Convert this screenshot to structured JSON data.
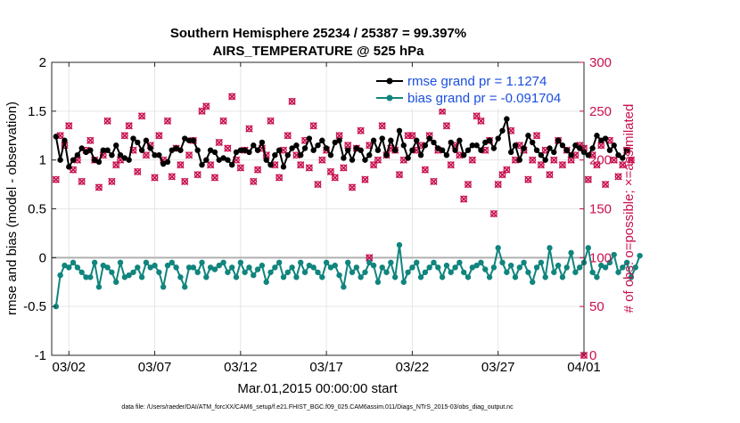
{
  "chart_data": {
    "type": "line",
    "title": [
      "Southern Hemisphere 25234 / 25387 = 99.397%",
      "AIRS_TEMPERATURE @ 525 hPa"
    ],
    "xlabel": "Mar.01,2015 00:00:00 start",
    "ylabel": "rmse and bias (model - observation)",
    "ylabel_right": "# of obs: o=possible; ×=assimilated",
    "xlim": [
      0,
      31
    ],
    "ylim": [
      -1,
      2
    ],
    "ylim_right": [
      0,
      300
    ],
    "x_ticks": [
      1,
      6,
      11,
      16,
      21,
      26,
      31
    ],
    "x_tick_labels": [
      "03/02",
      "03/07",
      "03/12",
      "03/17",
      "03/22",
      "03/27",
      "04/01"
    ],
    "y_ticks": [
      -1,
      -0.5,
      0,
      0.5,
      1,
      1.5,
      2
    ],
    "y_tick_labels": [
      "-1",
      "-0.5",
      "0",
      "0.5",
      "1",
      "1.5",
      "2"
    ],
    "y_ticks_right": [
      0,
      50,
      100,
      150,
      200,
      250,
      300
    ],
    "y_tick_labels_right": [
      "0",
      "50",
      "100",
      "150",
      "200",
      "250",
      "300"
    ],
    "grid": true,
    "legend_position": "top-right",
    "footnote": "data file: /Users/raeder/DAI/ATM_forcXX/CAM6_setup/f.e21.FHIST_BGC.f09_025.CAM6assim.011/Diags_NTrS_2015-03/obs_diag_output.nc",
    "colors": {
      "rmse": "#000000",
      "bias": "#10857e",
      "obs": "#c8104e",
      "legend_text": "#1a4fe0",
      "zero_line": "#b0b0b0"
    },
    "series": [
      {
        "name": "rmse grand pr = 1.1274",
        "axis": "left",
        "x_start": 0.25,
        "x_step": 0.25,
        "values": [
          1.24,
          1.0,
          1.2,
          0.93,
          1.0,
          1.05,
          1.12,
          1.08,
          1.1,
          1.0,
          0.98,
          1.1,
          1.1,
          1.05,
          1.15,
          1.05,
          1.02,
          1.0,
          1.22,
          1.18,
          1.1,
          1.2,
          1.12,
          1.05,
          1.05,
          0.96,
          0.98,
          1.1,
          1.12,
          1.1,
          1.22,
          1.2,
          1.2,
          1.1,
          0.95,
          1.0,
          1.1,
          1.08,
          1.0,
          1.02,
          1.0,
          0.95,
          1.08,
          1.1,
          1.1,
          1.08,
          1.15,
          1.1,
          1.18,
          1.0,
          0.95,
          1.05,
          1.1,
          0.93,
          1.05,
          1.12,
          1.15,
          1.05,
          1.12,
          1.22,
          1.1,
          1.15,
          1.2,
          1.12,
          1.05,
          1.18,
          1.2,
          1.02,
          1.1,
          1.0,
          1.12,
          1.1,
          1.0,
          1.05,
          1.2,
          1.1,
          1.22,
          1.05,
          1.2,
          1.1,
          1.3,
          1.15,
          1.02,
          1.1,
          1.2,
          1.05,
          1.15,
          1.22,
          1.18,
          1.12,
          1.1,
          1.05,
          1.18,
          1.1,
          1.2,
          1.05,
          1.1,
          1.15,
          1.15,
          1.1,
          1.18,
          1.2,
          1.12,
          1.22,
          1.3,
          1.42,
          1.08,
          1.15,
          1.0,
          1.12,
          1.25,
          1.18,
          1.1,
          1.05,
          1.0,
          1.12,
          1.08,
          1.2,
          1.15,
          1.1,
          1.05,
          1.15,
          1.12,
          1.08,
          1.05,
          1.12,
          1.25,
          1.2,
          1.22,
          1.1,
          1.15,
          1.05,
          1.02,
          1.1
        ]
      },
      {
        "name": "bias grand pr = -0.091704",
        "axis": "left",
        "x_start": 0.25,
        "x_step": 0.25,
        "values": [
          -0.5,
          -0.18,
          -0.08,
          -0.1,
          -0.05,
          -0.1,
          -0.15,
          -0.2,
          -0.2,
          -0.05,
          -0.3,
          -0.08,
          -0.1,
          -0.15,
          -0.25,
          -0.05,
          -0.2,
          -0.18,
          -0.15,
          -0.1,
          -0.2,
          -0.05,
          -0.1,
          -0.08,
          -0.15,
          -0.3,
          -0.08,
          -0.05,
          -0.1,
          -0.2,
          -0.3,
          -0.1,
          -0.1,
          -0.15,
          -0.05,
          -0.2,
          -0.1,
          -0.12,
          -0.08,
          -0.05,
          -0.15,
          -0.1,
          -0.2,
          -0.05,
          -0.15,
          -0.1,
          -0.18,
          -0.12,
          -0.08,
          -0.25,
          -0.15,
          -0.1,
          -0.05,
          -0.2,
          -0.15,
          -0.1,
          -0.2,
          -0.05,
          -0.15,
          -0.08,
          -0.1,
          -0.15,
          -0.2,
          -0.05,
          -0.1,
          -0.08,
          -0.18,
          -0.3,
          -0.05,
          -0.15,
          -0.1,
          -0.2,
          -0.15,
          -0.05,
          -0.08,
          -0.25,
          -0.1,
          -0.15,
          -0.05,
          -0.2,
          0.13,
          -0.25,
          -0.15,
          -0.1,
          -0.05,
          -0.2,
          -0.15,
          -0.1,
          -0.05,
          -0.1,
          -0.2,
          -0.08,
          -0.15,
          -0.1,
          -0.05,
          -0.15,
          -0.2,
          -0.1,
          -0.08,
          -0.05,
          -0.12,
          -0.2,
          -0.1,
          0.1,
          -0.05,
          -0.15,
          -0.08,
          -0.2,
          -0.1,
          -0.05,
          -0.15,
          -0.25,
          -0.1,
          -0.05,
          -0.2,
          0.1,
          -0.15,
          -0.08,
          -0.2,
          -0.1,
          0.05,
          -0.15,
          -0.1,
          -0.05,
          0.1,
          -0.15,
          -0.2,
          -0.08,
          -0.1,
          -0.05,
          0.03,
          -0.15,
          -0.1,
          -0.05,
          -0.2,
          -0.1,
          0.02
        ]
      },
      {
        "name": "# of obs (possible / assimilated)",
        "axis": "right",
        "type": "scatter",
        "x_start": 0.25,
        "x_step": 0.25,
        "values": [
          180,
          225,
          215,
          235,
          190,
          200,
          178,
          210,
          220,
          200,
          172,
          205,
          240,
          178,
          195,
          200,
          225,
          235,
          210,
          188,
          245,
          205,
          215,
          182,
          225,
          200,
          240,
          183,
          212,
          195,
          178,
          205,
          220,
          185,
          250,
          255,
          195,
          182,
          218,
          240,
          212,
          265,
          200,
          192,
          210,
          232,
          178,
          190,
          212,
          205,
          240,
          195,
          182,
          210,
          225,
          260,
          205,
          195,
          220,
          192,
          235,
          175,
          200,
          210,
          188,
          182,
          225,
          192,
          215,
          172,
          212,
          230,
          180,
          215,
          195,
          200,
          235,
          205,
          212,
          210,
          185,
          200,
          225,
          225,
          210,
          215,
          190,
          225,
          178,
          210,
          250,
          235,
          195,
          215,
          205,
          160,
          175,
          200,
          245,
          240,
          210,
          220,
          145,
          175,
          185,
          190,
          230,
          200,
          215,
          210,
          180,
          200,
          225,
          195,
          210,
          185,
          200,
          220,
          195,
          210,
          200,
          205,
          215,
          212,
          180,
          205,
          195,
          215,
          175,
          220,
          200,
          183,
          195,
          210,
          200
        ],
        "extra_points": [
          {
            "x": 18.5,
            "y": 100
          },
          {
            "x": 31,
            "y": 0
          }
        ]
      }
    ]
  }
}
